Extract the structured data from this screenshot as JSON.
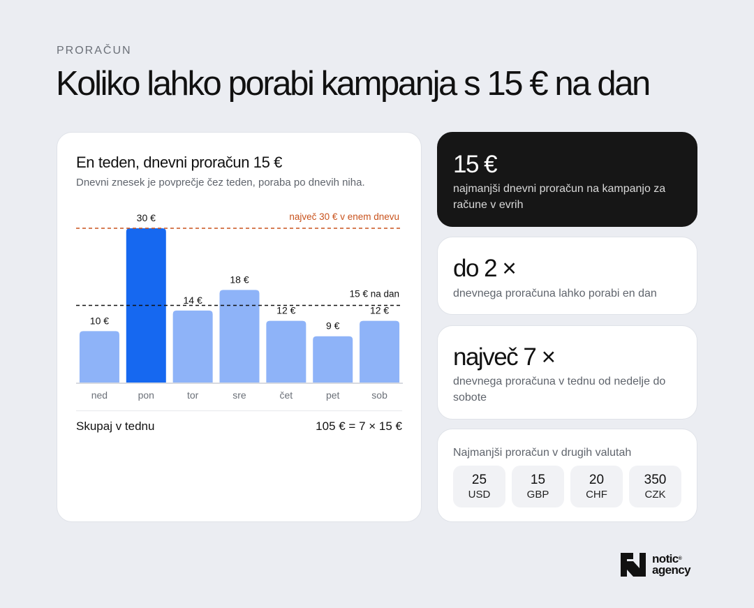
{
  "header": {
    "eyebrow": "PRORAČUN",
    "title": "Koliko lahko porabi kampanja s 15 € na dan"
  },
  "chart_card": {
    "title": "En teden, dnevni proračun 15 €",
    "subtitle": "Dnevni znesek je povprečje čez teden, poraba po dnevih niha.",
    "total_label": "Skupaj v tednu",
    "total_value": "105 € = 7 × 15 €"
  },
  "chart_data": {
    "type": "bar",
    "categories": [
      "ned",
      "pon",
      "tor",
      "sre",
      "čet",
      "pet",
      "sob"
    ],
    "values": [
      10,
      30,
      14,
      18,
      12,
      9,
      12
    ],
    "value_labels": [
      "10 €",
      "30 €",
      "14 €",
      "18 €",
      "12 €",
      "9 €",
      "12 €"
    ],
    "highlight_index": 1,
    "ylim": [
      0,
      30
    ],
    "reference_lines": [
      {
        "value": 30,
        "label": "največ 30 € v enem dnevu",
        "color": "#c8521c"
      },
      {
        "value": 15,
        "label": "15 € na dan",
        "color": "#111111"
      }
    ],
    "colors": {
      "bar": "#8eb3f8",
      "highlight": "#1668f0"
    }
  },
  "stats": [
    {
      "value": "15 €",
      "desc": "najmanjši dnevni proračun na kampanjo za račune v evrih"
    },
    {
      "value": "do 2 ×",
      "desc": "dnevnega proračuna lahko porabi en dan"
    },
    {
      "value": "največ 7 ×",
      "desc": "dnevnega proračuna v tednu od nedelje do sobote"
    }
  ],
  "currencies": {
    "title": "Najmanjši proračun v drugih valutah",
    "items": [
      {
        "amount": "25",
        "code": "USD"
      },
      {
        "amount": "15",
        "code": "GBP"
      },
      {
        "amount": "20",
        "code": "CHF"
      },
      {
        "amount": "350",
        "code": "CZK"
      }
    ]
  },
  "logo": {
    "line1": "notic",
    "line2": "agency",
    "mark": "®"
  }
}
